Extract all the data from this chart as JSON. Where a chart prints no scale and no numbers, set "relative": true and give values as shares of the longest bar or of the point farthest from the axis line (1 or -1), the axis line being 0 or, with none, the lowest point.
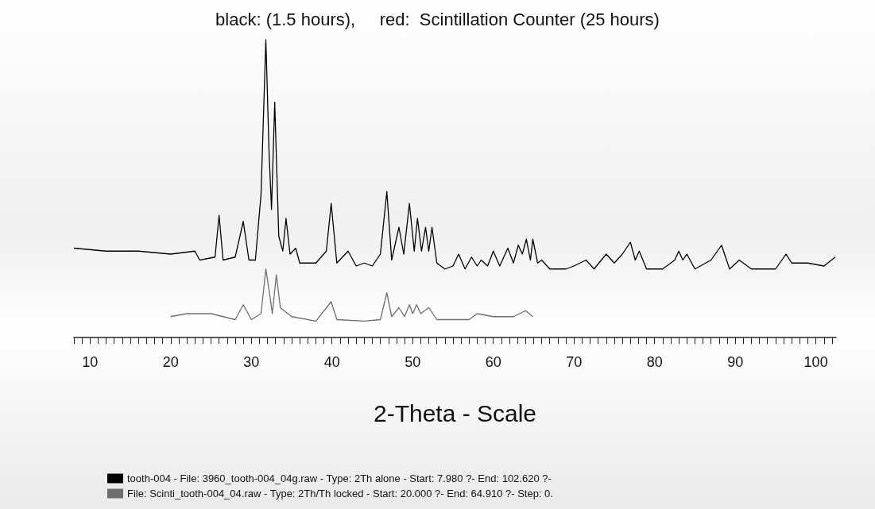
{
  "chart_data": {
    "type": "line",
    "title": "black: (1.5 hours),     red:  Scintillation Counter (25 hours)",
    "xlabel": "2-Theta - Scale",
    "relative": true,
    "legend": "bottom",
    "grid": false,
    "marker": "none",
    "line_style": "solid",
    "xlim": [
      8,
      102.5
    ],
    "xticks": [
      {
        "value": 8,
        "label": null
      },
      {
        "value": 9,
        "label": null
      },
      10,
      {
        "value": 11,
        "label": null
      },
      {
        "value": 12,
        "label": null
      },
      {
        "value": 13,
        "label": null
      },
      {
        "value": 14,
        "label": null
      },
      {
        "value": 15,
        "label": null
      },
      {
        "value": 16,
        "label": null
      },
      {
        "value": 17,
        "label": null
      },
      {
        "value": 18,
        "label": null
      },
      {
        "value": 19,
        "label": null
      },
      20,
      {
        "value": 21,
        "label": null
      },
      {
        "value": 22,
        "label": null
      },
      {
        "value": 23,
        "label": null
      },
      {
        "value": 24,
        "label": null
      },
      {
        "value": 25,
        "label": null
      },
      {
        "value": 26,
        "label": null
      },
      {
        "value": 27,
        "label": null
      },
      {
        "value": 28,
        "label": null
      },
      {
        "value": 29,
        "label": null
      },
      30,
      {
        "value": 31,
        "label": null
      },
      {
        "value": 32,
        "label": null
      },
      {
        "value": 33,
        "label": null
      },
      {
        "value": 34,
        "label": null
      },
      {
        "value": 35,
        "label": null
      },
      {
        "value": 36,
        "label": null
      },
      {
        "value": 37,
        "label": null
      },
      {
        "value": 38,
        "label": null
      },
      {
        "value": 39,
        "label": null
      },
      40,
      {
        "value": 41,
        "label": null
      },
      {
        "value": 42,
        "label": null
      },
      {
        "value": 43,
        "label": null
      },
      {
        "value": 44,
        "label": null
      },
      {
        "value": 45,
        "label": null
      },
      {
        "value": 46,
        "label": null
      },
      {
        "value": 47,
        "label": null
      },
      {
        "value": 48,
        "label": null
      },
      {
        "value": 49,
        "label": null
      },
      50,
      {
        "value": 51,
        "label": null
      },
      {
        "value": 52,
        "label": null
      },
      {
        "value": 53,
        "label": null
      },
      {
        "value": 54,
        "label": null
      },
      {
        "value": 55,
        "label": null
      },
      {
        "value": 56,
        "label": null
      },
      {
        "value": 57,
        "label": null
      },
      {
        "value": 58,
        "label": null
      },
      {
        "value": 59,
        "label": null
      },
      60,
      {
        "value": 61,
        "label": null
      },
      {
        "value": 62,
        "label": null
      },
      {
        "value": 63,
        "label": null
      },
      {
        "value": 64,
        "label": null
      },
      {
        "value": 65,
        "label": null
      },
      {
        "value": 66,
        "label": null
      },
      {
        "value": 67,
        "label": null
      },
      {
        "value": 68,
        "label": null
      },
      {
        "value": 69,
        "label": null
      },
      70,
      {
        "value": 71,
        "label": null
      },
      {
        "value": 72,
        "label": null
      },
      {
        "value": 73,
        "label": null
      },
      {
        "value": 74,
        "label": null
      },
      {
        "value": 75,
        "label": null
      },
      {
        "value": 76,
        "label": null
      },
      {
        "value": 77,
        "label": null
      },
      {
        "value": 78,
        "label": null
      },
      {
        "value": 79,
        "label": null
      },
      80,
      {
        "value": 81,
        "label": null
      },
      {
        "value": 82,
        "label": null
      },
      {
        "value": 83,
        "label": null
      },
      {
        "value": 84,
        "label": null
      },
      {
        "value": 85,
        "label": null
      },
      {
        "value": 86,
        "label": null
      },
      {
        "value": 87,
        "label": null
      },
      {
        "value": 88,
        "label": null
      },
      {
        "value": 89,
        "label": null
      },
      90,
      {
        "value": 91,
        "label": null
      },
      {
        "value": 92,
        "label": null
      },
      {
        "value": 93,
        "label": null
      },
      {
        "value": 94,
        "label": null
      },
      {
        "value": 95,
        "label": null
      },
      {
        "value": 96,
        "label": null
      },
      {
        "value": 97,
        "label": null
      },
      {
        "value": 98,
        "label": null
      },
      {
        "value": 99,
        "label": null
      },
      100,
      {
        "value": 101,
        "label": null
      },
      {
        "value": 102,
        "label": null
      }
    ],
    "series": [
      {
        "name": "tooth-004 - File: 3960_tooth-004_04g.raw - Type: 2Th alone - Start: 7.980 ?- End: 102.620 ?-",
        "color": "#000000",
        "x": [
          8,
          12,
          16,
          20,
          23,
          23.6,
          25.5,
          26,
          26.5,
          28,
          29,
          29.7,
          30.5,
          31.2,
          31.8,
          32.2,
          32.5,
          32.9,
          33.4,
          33.9,
          34.3,
          34.8,
          35.5,
          36,
          38,
          39.3,
          39.9,
          40.6,
          42,
          43,
          44,
          45,
          46,
          46.8,
          47.4,
          48.3,
          48.9,
          49.6,
          50.2,
          50.6,
          51.1,
          51.6,
          52,
          52.4,
          53,
          54,
          55,
          55.7,
          56.5,
          57.3,
          58,
          58.5,
          59.3,
          60,
          60.8,
          61.8,
          62.5,
          63.1,
          63.6,
          64.1,
          64.6,
          64.9,
          65.5,
          66,
          67,
          69,
          70,
          71.5,
          72.5,
          74,
          75,
          76,
          77,
          77.6,
          78.1,
          79,
          81,
          82.5,
          83,
          83.5,
          84,
          85,
          87,
          88.3,
          89.3,
          90.5,
          92,
          95,
          96.3,
          97,
          99,
          101,
          102.4
        ],
        "values": [
          0.3,
          0.29,
          0.29,
          0.28,
          0.29,
          0.26,
          0.27,
          0.41,
          0.26,
          0.27,
          0.39,
          0.26,
          0.26,
          0.48,
          1,
          0.62,
          0.43,
          0.79,
          0.34,
          0.29,
          0.4,
          0.28,
          0.3,
          0.25,
          0.25,
          0.29,
          0.45,
          0.25,
          0.29,
          0.24,
          0.25,
          0.24,
          0.28,
          0.49,
          0.26,
          0.37,
          0.28,
          0.45,
          0.29,
          0.4,
          0.29,
          0.37,
          0.29,
          0.37,
          0.25,
          0.23,
          0.24,
          0.28,
          0.23,
          0.27,
          0.24,
          0.26,
          0.24,
          0.29,
          0.24,
          0.3,
          0.25,
          0.31,
          0.28,
          0.33,
          0.26,
          0.33,
          0.25,
          0.26,
          0.23,
          0.23,
          0.24,
          0.26,
          0.23,
          0.28,
          0.25,
          0.28,
          0.32,
          0.26,
          0.29,
          0.23,
          0.23,
          0.26,
          0.29,
          0.26,
          0.28,
          0.23,
          0.26,
          0.31,
          0.23,
          0.26,
          0.23,
          0.23,
          0.28,
          0.25,
          0.25,
          0.24,
          0.27
        ]
      },
      {
        "name": "File: Scinti_tooth-004_04.raw - Type: 2Th/Th locked - Start: 20.000 ?- End: 64.910 ?- Step: 0.",
        "color": "#6e6e6e",
        "x": [
          20,
          22,
          25,
          28,
          29,
          30,
          31.2,
          31.8,
          32.3,
          32.6,
          33.1,
          33.6,
          35,
          38,
          39.9,
          40.6,
          44,
          46,
          46.8,
          47.4,
          48.3,
          49,
          49.6,
          50,
          50.5,
          51,
          52,
          53,
          57,
          58,
          60,
          62.5,
          64,
          64.9
        ],
        "values": [
          0.07,
          0.08,
          0.08,
          0.06,
          0.11,
          0.06,
          0.08,
          0.23,
          0.14,
          0.08,
          0.21,
          0.1,
          0.07,
          0.055,
          0.12,
          0.06,
          0.055,
          0.06,
          0.15,
          0.07,
          0.1,
          0.07,
          0.11,
          0.08,
          0.11,
          0.08,
          0.1,
          0.06,
          0.06,
          0.08,
          0.07,
          0.07,
          0.09,
          0.07
        ]
      }
    ]
  }
}
